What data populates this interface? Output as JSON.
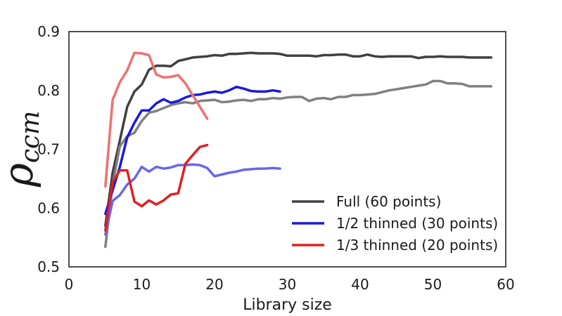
{
  "chart_data": {
    "type": "line",
    "xlabel": "Library size",
    "ylabel": {
      "symbol": "ρ",
      "subscript": "ccm"
    },
    "xlim": [
      0,
      60
    ],
    "ylim": [
      0.5,
      0.9
    ],
    "xticks": [
      "0",
      "10",
      "20",
      "30",
      "40",
      "50",
      "60"
    ],
    "yticks": [
      "0.5",
      "0.6",
      "0.7",
      "0.8",
      "0.9"
    ],
    "grid": false,
    "legend_position": "lower-right",
    "legend": [
      {
        "label": "Full (60 points)",
        "color": "#404040"
      },
      {
        "label": "1/2 thinned (30 points)",
        "color": "#1a1adb"
      },
      {
        "label": "1/3 thinned (20 points)",
        "color": "#e02020"
      }
    ],
    "series": [
      {
        "name": "Full (60 points)",
        "color": "#404040",
        "opacity": 1,
        "x": [
          5,
          6,
          7,
          8,
          9,
          10,
          11,
          12,
          13,
          14,
          15,
          16,
          17,
          18,
          19,
          20,
          21,
          22,
          23,
          24,
          25,
          26,
          27,
          28,
          29,
          30,
          31,
          32,
          33,
          34,
          35,
          36,
          37,
          38,
          39,
          40,
          41,
          42,
          43,
          44,
          45,
          46,
          47,
          48,
          49,
          50,
          51,
          52,
          53,
          54,
          55,
          56,
          57,
          58
        ],
        "y": [
          0.57,
          0.66,
          0.715,
          0.772,
          0.798,
          0.81,
          0.835,
          0.842,
          0.842,
          0.841,
          0.85,
          0.853,
          0.856,
          0.857,
          0.858,
          0.86,
          0.859,
          0.862,
          0.862,
          0.863,
          0.864,
          0.863,
          0.863,
          0.863,
          0.862,
          0.859,
          0.859,
          0.859,
          0.859,
          0.858,
          0.86,
          0.86,
          0.861,
          0.861,
          0.858,
          0.858,
          0.861,
          0.858,
          0.857,
          0.858,
          0.858,
          0.858,
          0.858,
          0.855,
          0.857,
          0.857,
          0.858,
          0.857,
          0.857,
          0.857,
          0.856,
          0.856,
          0.856,
          0.856
        ]
      },
      {
        "name": "",
        "color": "#808080",
        "opacity": 1,
        "x": [
          5,
          6,
          7,
          8,
          9,
          10,
          11,
          12,
          13,
          14,
          15,
          16,
          17,
          18,
          19,
          20,
          21,
          22,
          23,
          24,
          25,
          26,
          27,
          28,
          29,
          30,
          31,
          32,
          33,
          34,
          35,
          36,
          37,
          38,
          39,
          40,
          41,
          42,
          43,
          44,
          45,
          46,
          47,
          48,
          49,
          50,
          51,
          52,
          53,
          54,
          55,
          56,
          57,
          58
        ],
        "y": [
          0.534,
          0.64,
          0.705,
          0.722,
          0.728,
          0.748,
          0.762,
          0.765,
          0.77,
          0.775,
          0.778,
          0.78,
          0.778,
          0.782,
          0.783,
          0.784,
          0.78,
          0.781,
          0.783,
          0.784,
          0.782,
          0.785,
          0.785,
          0.787,
          0.786,
          0.788,
          0.789,
          0.789,
          0.782,
          0.786,
          0.787,
          0.785,
          0.789,
          0.789,
          0.792,
          0.792,
          0.793,
          0.794,
          0.797,
          0.8,
          0.802,
          0.804,
          0.806,
          0.808,
          0.81,
          0.816,
          0.816,
          0.812,
          0.812,
          0.811,
          0.807,
          0.807,
          0.807,
          0.807
        ]
      },
      {
        "name": "1/2 thinned (30 points)",
        "color": "#1a1adb",
        "opacity": 1,
        "x": [
          5,
          6,
          7,
          8,
          9,
          10,
          11,
          12,
          13,
          14,
          15,
          16,
          17,
          18,
          19,
          20,
          21,
          22,
          23,
          24,
          25,
          26,
          27,
          28,
          29
        ],
        "y": [
          0.59,
          0.63,
          0.67,
          0.72,
          0.745,
          0.766,
          0.766,
          0.778,
          0.785,
          0.779,
          0.782,
          0.788,
          0.792,
          0.793,
          0.796,
          0.798,
          0.796,
          0.8,
          0.806,
          0.803,
          0.799,
          0.798,
          0.798,
          0.8,
          0.798
        ]
      },
      {
        "name": "",
        "color": "#6666ee",
        "opacity": 1,
        "x": [
          5,
          6,
          7,
          8,
          9,
          10,
          11,
          12,
          13,
          14,
          15,
          16,
          17,
          18,
          19,
          20,
          21,
          22,
          23,
          24,
          25,
          26,
          27,
          28,
          29
        ],
        "y": [
          0.555,
          0.612,
          0.622,
          0.64,
          0.65,
          0.67,
          0.662,
          0.67,
          0.667,
          0.669,
          0.673,
          0.673,
          0.674,
          0.673,
          0.668,
          0.654,
          0.657,
          0.66,
          0.662,
          0.665,
          0.666,
          0.667,
          0.667,
          0.668,
          0.667
        ]
      },
      {
        "name": "1/3 thinned (20 points)",
        "color": "#e02020",
        "opacity": 1,
        "x": [
          5,
          6,
          7,
          8,
          9,
          10,
          11,
          12,
          13,
          14,
          15,
          16,
          17,
          18,
          19
        ],
        "y": [
          0.562,
          0.644,
          0.664,
          0.664,
          0.611,
          0.603,
          0.613,
          0.606,
          0.613,
          0.623,
          0.625,
          0.675,
          0.69,
          0.704,
          0.707
        ]
      },
      {
        "name": "",
        "color": "#f07070",
        "opacity": 1,
        "x": [
          5,
          6,
          7,
          8,
          9,
          10,
          11,
          12,
          13,
          14,
          15,
          16,
          17,
          18,
          19
        ],
        "y": [
          0.637,
          0.784,
          0.814,
          0.834,
          0.864,
          0.863,
          0.86,
          0.827,
          0.822,
          0.823,
          0.826,
          0.812,
          0.792,
          0.772,
          0.752
        ]
      }
    ]
  }
}
